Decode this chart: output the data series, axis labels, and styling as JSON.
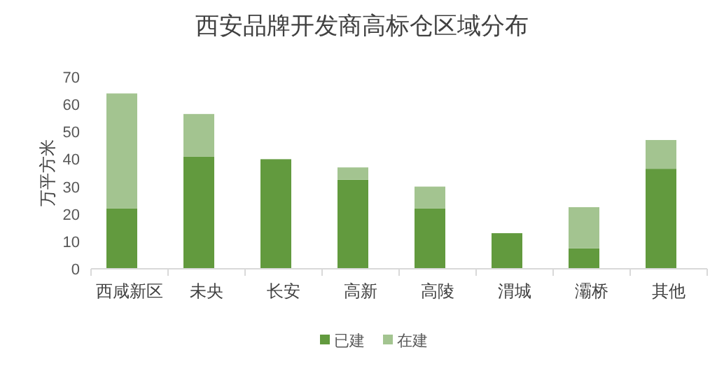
{
  "chart_data": {
    "type": "bar",
    "title": "西安品牌开发商高标仓区域分布",
    "ylabel": "万平方米",
    "stacked": true,
    "legend": "bottom",
    "grid": false,
    "categories": [
      "西咸新区",
      "未央",
      "长安",
      "高新",
      "高陵",
      "渭城",
      "灞桥",
      "其他"
    ],
    "ylim": [
      0,
      70
    ],
    "yticks": [
      0,
      10,
      20,
      30,
      40,
      50,
      60,
      70
    ],
    "series": [
      {
        "name": "已建",
        "color": "#629a3e",
        "values": [
          22,
          41,
          40,
          32.5,
          22,
          13,
          7.5,
          36.5
        ]
      },
      {
        "name": "在建",
        "color": "#a3c490",
        "values": [
          42,
          15.5,
          0,
          4.5,
          8,
          0,
          15,
          10.5
        ]
      }
    ]
  }
}
